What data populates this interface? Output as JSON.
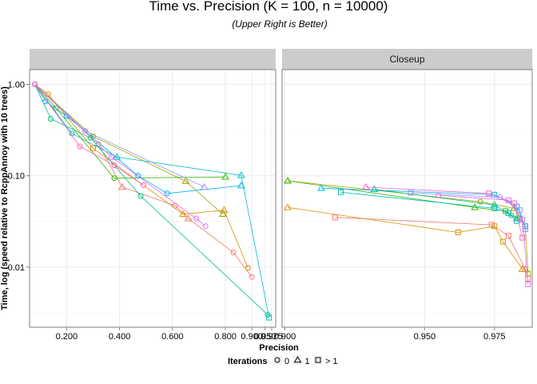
{
  "chart_data": {
    "type": "line",
    "title": "Time vs. Precision (K = 100, n = 10000)",
    "subtitle": "(Upper Right is Better)",
    "xlabel": "Precision",
    "ylabel": "Time, log (speed relative to RcppAnnoy with 10 trees)",
    "y_scale": "log10",
    "grid": true,
    "legend": {
      "title": "Iterations",
      "position": "bottom",
      "entries": [
        {
          "label": "0",
          "shape": "circle"
        },
        {
          "label": "1",
          "shape": "triangle"
        },
        {
          "label": "> 1",
          "shape": "square"
        }
      ]
    },
    "colors": [
      "#f8766d",
      "#d89000",
      "#a3a500",
      "#39b600",
      "#00bf7d",
      "#00bfc4",
      "#00b0f6",
      "#9590ff",
      "#e76bf3",
      "#ff62bc"
    ],
    "panels": [
      {
        "strip": "",
        "xlim": [
          0.06,
          0.99
        ],
        "ylim": [
          0.0022,
          1.45
        ],
        "x_ticks": [
          0.2,
          0.4,
          0.6,
          0.8,
          0.9,
          0.95,
          0.975
        ],
        "x_tick_labels": [
          "0.200",
          "0.400",
          "0.600",
          "0.800",
          "0.900",
          "0.950",
          "0.975"
        ],
        "y_ticks": [
          0.01,
          0.1,
          1
        ],
        "y_tick_labels": [
          "0.01",
          "0.10",
          "1.00"
        ],
        "series": [
          {
            "color": 0,
            "points": [
              [
                0.08,
                1.0,
                0
              ],
              [
                0.32,
                0.22,
                0
              ],
              [
                0.41,
                0.075,
                1
              ],
              [
                0.61,
                0.047,
                0
              ],
              [
                0.66,
                0.034,
                1
              ],
              [
                0.83,
                0.0145,
                0
              ],
              [
                0.9,
                0.0078,
                0
              ]
            ]
          },
          {
            "color": 1,
            "points": [
              [
                0.08,
                1.0,
                0
              ],
              [
                0.13,
                0.78,
                0
              ],
              [
                0.3,
                0.2,
                2
              ],
              [
                0.64,
                0.038,
                1
              ],
              [
                0.795,
                0.042,
                1
              ],
              [
                0.885,
                0.0098,
                0
              ]
            ]
          },
          {
            "color": 2,
            "points": [
              [
                0.08,
                1.0,
                0
              ],
              [
                0.3,
                0.27,
                0
              ],
              [
                0.65,
                0.087,
                1
              ],
              [
                0.79,
                0.038,
                1
              ]
            ]
          },
          {
            "color": 3,
            "points": [
              [
                0.08,
                1.0,
                0
              ],
              [
                0.16,
                0.55,
                0
              ],
              [
                0.38,
                0.094,
                0
              ],
              [
                0.8,
                0.097,
                1
              ]
            ]
          },
          {
            "color": 4,
            "points": [
              [
                0.08,
                1.0,
                0
              ],
              [
                0.14,
                0.42,
                0
              ],
              [
                0.29,
                0.26,
                0
              ],
              [
                0.48,
                0.06,
                0
              ],
              [
                0.96,
                0.003,
                0
              ]
            ]
          },
          {
            "color": 5,
            "points": [
              [
                0.08,
                1.0,
                0
              ],
              [
                0.22,
                0.29,
                0
              ],
              [
                0.39,
                0.16,
                1
              ],
              [
                0.86,
                0.101,
                1
              ],
              [
                0.965,
                0.0028,
                2
              ]
            ]
          },
          {
            "color": 6,
            "points": [
              [
                0.08,
                1.0,
                0
              ],
              [
                0.12,
                0.65,
                0
              ],
              [
                0.2,
                0.45,
                0
              ],
              [
                0.47,
                0.1,
                0
              ],
              [
                0.58,
                0.064,
                0
              ],
              [
                0.86,
                0.078,
                1
              ]
            ]
          },
          {
            "color": 7,
            "points": [
              [
                0.08,
                1.0,
                0
              ],
              [
                0.27,
                0.31,
                0
              ],
              [
                0.72,
                0.075,
                1
              ]
            ]
          },
          {
            "color": 8,
            "points": [
              [
                0.08,
                1.0,
                0
              ],
              [
                0.37,
                0.16,
                0
              ],
              [
                0.69,
                0.034,
                0
              ],
              [
                0.725,
                0.028,
                0
              ]
            ]
          },
          {
            "color": 9,
            "points": [
              [
                0.08,
                1.0,
                0
              ],
              [
                0.25,
                0.21,
                0
              ],
              [
                0.38,
                0.13,
                0
              ],
              [
                0.49,
                0.079,
                0
              ]
            ]
          }
        ]
      },
      {
        "strip": "Closeup",
        "xlim": [
          0.899,
          0.9885
        ],
        "ylim": [
          0.0022,
          1.45
        ],
        "x_ticks": [
          0.9,
          0.95,
          0.975
        ],
        "x_tick_labels": [
          "0.900",
          "0.950",
          "0.975"
        ],
        "y_ticks": [
          0.01,
          0.1,
          1
        ],
        "y_tick_labels": [],
        "series": [
          {
            "color": 0,
            "points": [
              [
                0.918,
                0.035,
                2
              ],
              [
                0.974,
                0.029,
                2
              ],
              [
                0.98,
                0.022,
                2
              ],
              [
                0.986,
                0.0095,
                1
              ],
              [
                0.987,
                0.0075,
                2
              ]
            ]
          },
          {
            "color": 1,
            "points": [
              [
                0.901,
                0.045,
                1
              ],
              [
                0.962,
                0.024,
                2
              ],
              [
                0.975,
                0.028,
                2
              ],
              [
                0.978,
                0.019,
                2
              ],
              [
                0.985,
                0.0095,
                1
              ]
            ]
          },
          {
            "color": 2,
            "points": [
              [
                0.901,
                0.088,
                1
              ],
              [
                0.97,
                0.052,
                0
              ],
              [
                0.982,
                0.044,
                1
              ],
              [
                0.986,
                0.028,
                2
              ],
              [
                0.987,
                0.0085,
                2
              ]
            ]
          },
          {
            "color": 3,
            "points": [
              [
                0.901,
                0.088,
                1
              ],
              [
                0.968,
                0.045,
                1
              ],
              [
                0.979,
                0.041,
                2
              ],
              [
                0.983,
                0.034,
                1
              ]
            ]
          },
          {
            "color": 4,
            "points": [
              [
                0.932,
                0.071,
                1
              ],
              [
                0.975,
                0.048,
                1
              ],
              [
                0.981,
                0.037,
                0
              ],
              [
                0.984,
                0.034,
                2
              ]
            ]
          },
          {
            "color": 5,
            "points": [
              [
                0.92,
                0.066,
                2
              ],
              [
                0.975,
                0.044,
                2
              ],
              [
                0.98,
                0.039,
                2
              ],
              [
                0.983,
                0.032,
                2
              ]
            ]
          },
          {
            "color": 6,
            "points": [
              [
                0.913,
                0.073,
                1
              ],
              [
                0.975,
                0.062,
                2
              ],
              [
                0.983,
                0.046,
                2
              ],
              [
                0.986,
                0.028,
                2
              ]
            ]
          },
          {
            "color": 7,
            "points": [
              [
                0.945,
                0.065,
                2
              ],
              [
                0.977,
                0.058,
                0
              ],
              [
                0.984,
                0.042,
                2
              ],
              [
                0.986,
                0.026,
                2
              ]
            ]
          },
          {
            "color": 8,
            "points": [
              [
                0.955,
                0.061,
                0
              ],
              [
                0.98,
                0.054,
                2
              ],
              [
                0.985,
                0.033,
                2
              ],
              [
                0.987,
                0.0065,
                2
              ]
            ]
          },
          {
            "color": 9,
            "points": [
              [
                0.929,
                0.075,
                1
              ],
              [
                0.973,
                0.064,
                2
              ],
              [
                0.982,
                0.05,
                2
              ],
              [
                0.985,
                0.021,
                2
              ]
            ]
          }
        ]
      }
    ]
  }
}
